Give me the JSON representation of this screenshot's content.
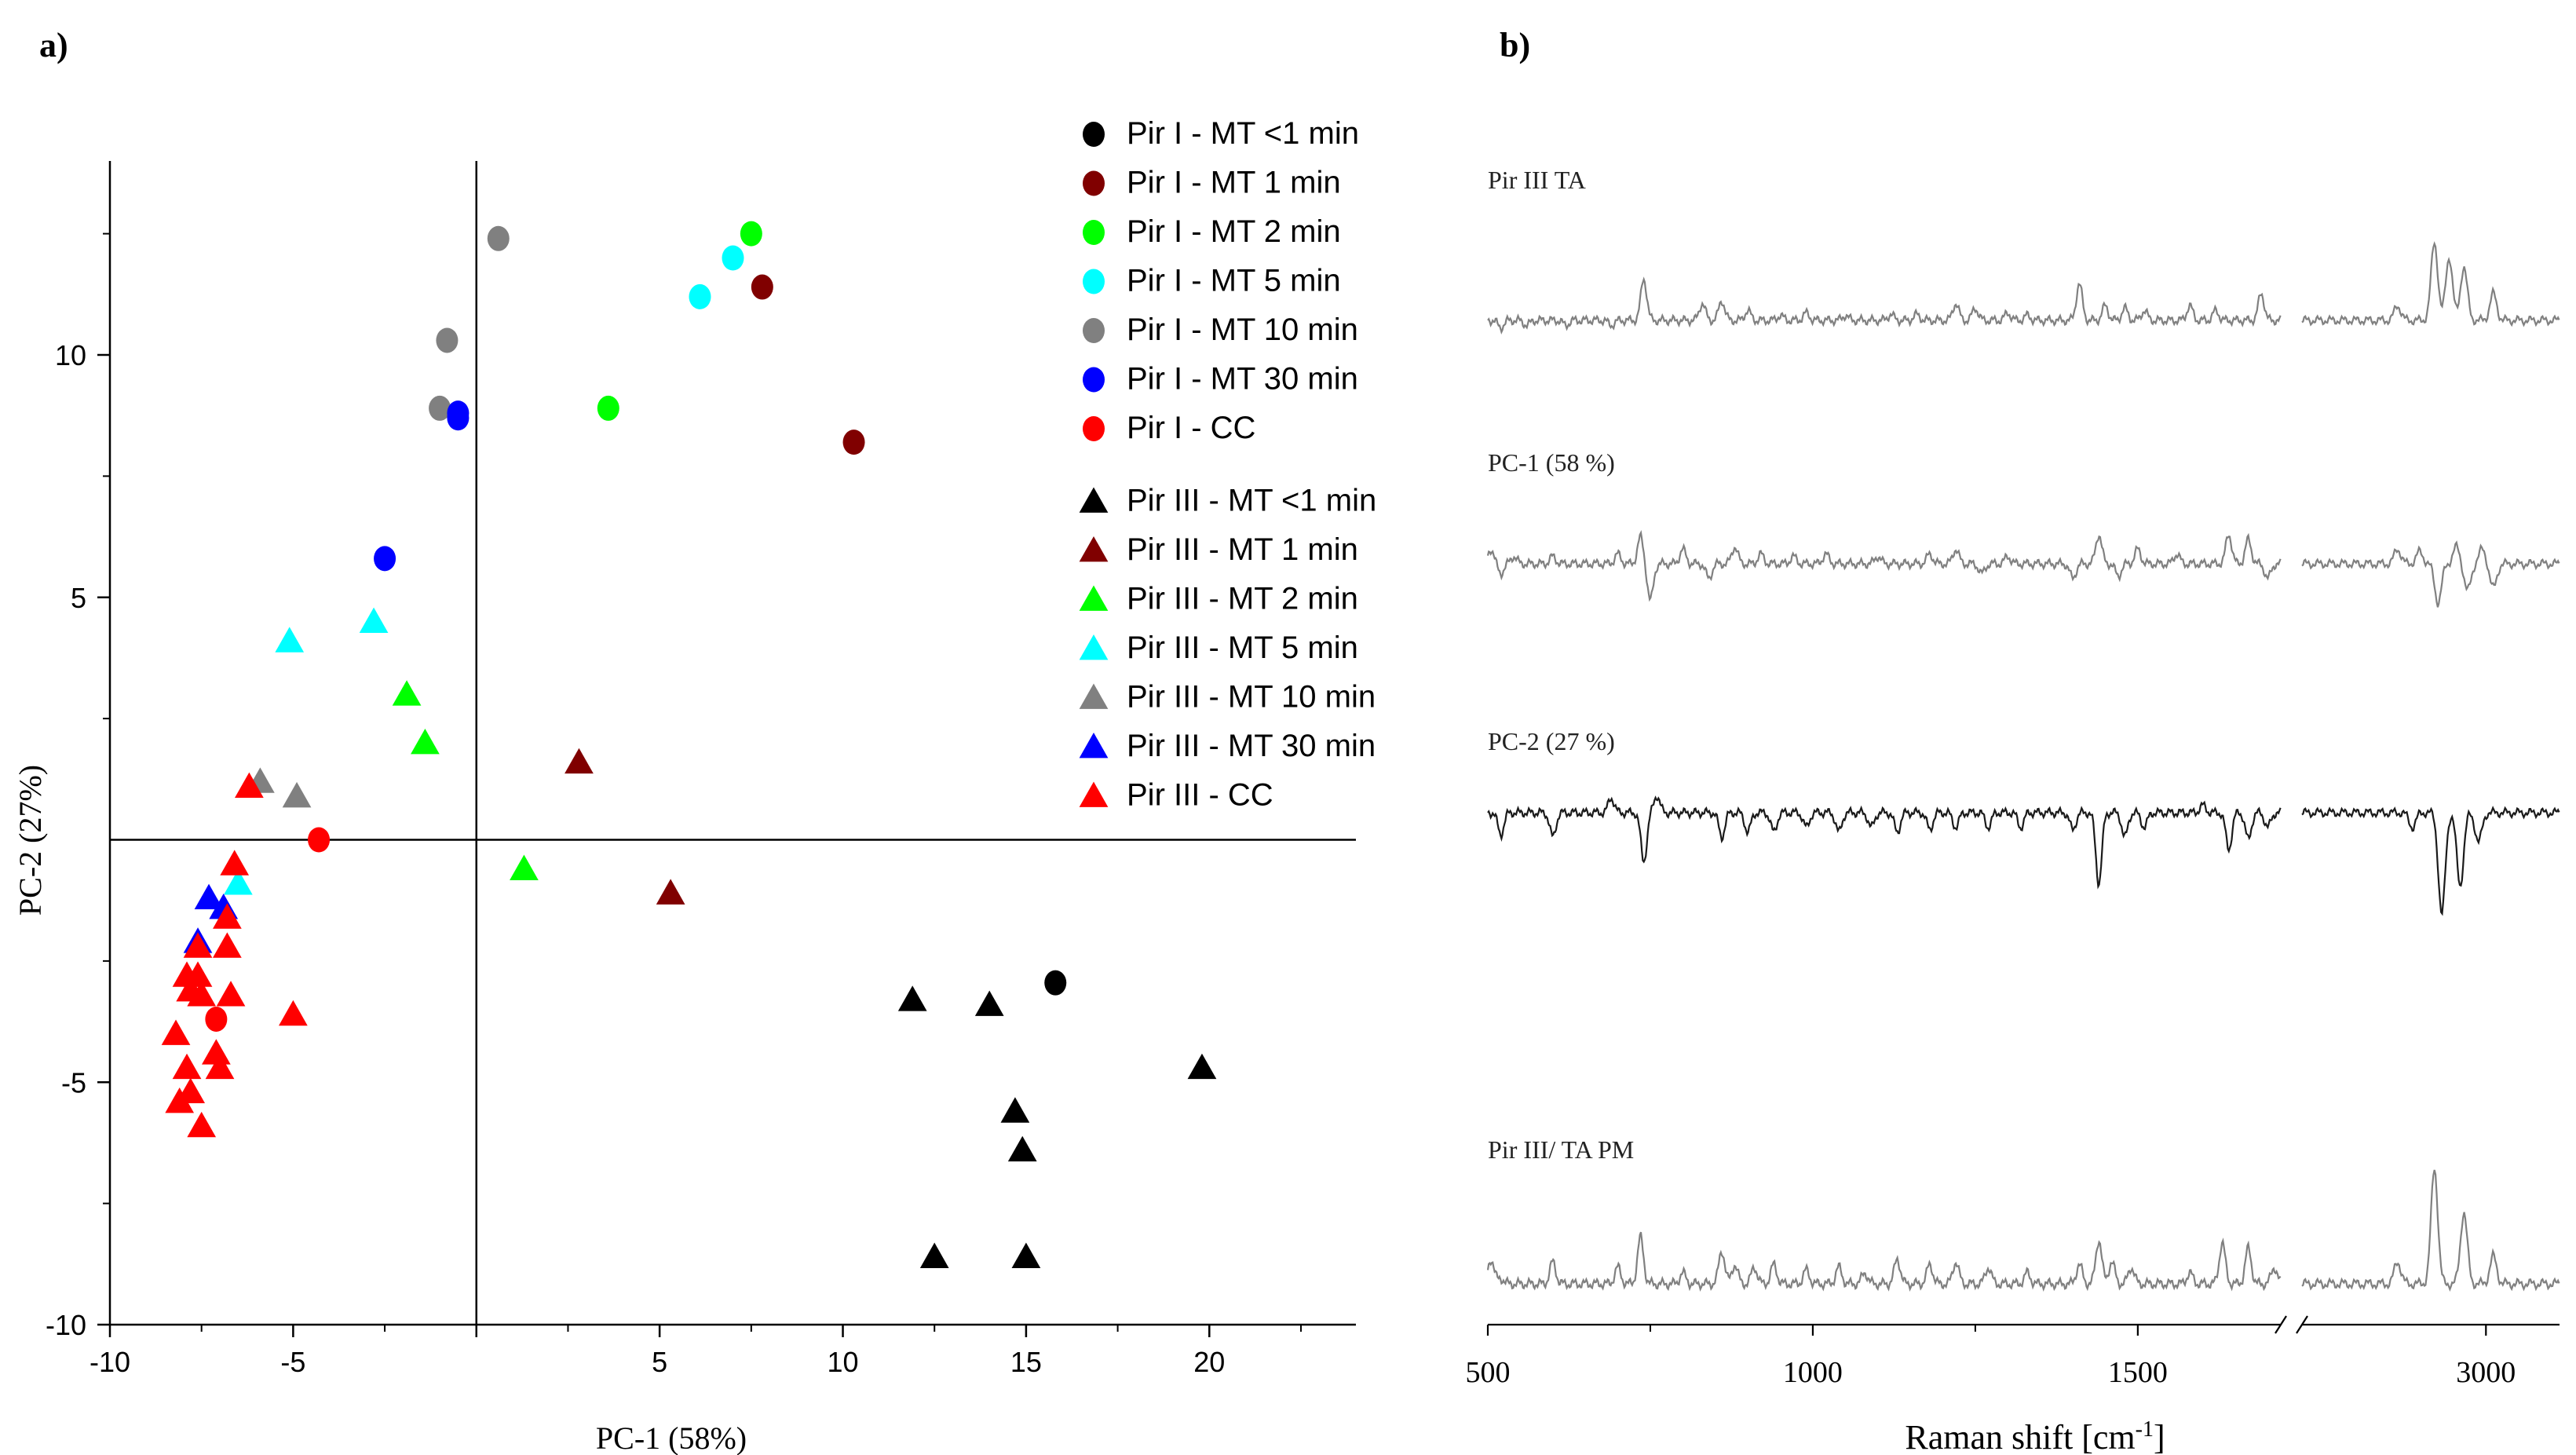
{
  "chart_data": [
    {
      "type": "scatter",
      "panel_label": "a)",
      "xlabel": "PC-1 (58%)",
      "ylabel": "PC-2 (27%)",
      "xlim": [
        -10,
        24
      ],
      "ylim": [
        -10,
        14
      ],
      "xticks": [
        -10,
        -5,
        0,
        5,
        10,
        15,
        20
      ],
      "xtick_labels": [
        "-10",
        "-5",
        "",
        "5",
        "10",
        "15",
        "20"
      ],
      "yticks": [
        -10,
        -5,
        5,
        10
      ],
      "ytick_labels": [
        "-10",
        "-5",
        "5",
        "10"
      ],
      "grid": false,
      "legend_position": "top-right",
      "series": [
        {
          "name": "Pir I - MT <1 min",
          "marker": "circle",
          "color": "#000000",
          "points": [
            [
              15.8,
              -2.95
            ]
          ]
        },
        {
          "name": "Pir I - MT 1   min",
          "marker": "circle",
          "color": "#800000",
          "points": [
            [
              7.8,
              11.4
            ],
            [
              10.3,
              8.2
            ]
          ]
        },
        {
          "name": "Pir I - MT 2   min",
          "marker": "circle",
          "color": "#00ff00",
          "points": [
            [
              7.5,
              12.5
            ],
            [
              3.6,
              8.9
            ]
          ]
        },
        {
          "name": "Pir I - MT 5   min",
          "marker": "circle",
          "color": "#00ffff",
          "points": [
            [
              7.0,
              12.0
            ],
            [
              6.1,
              11.2
            ]
          ]
        },
        {
          "name": "Pir I - MT 10 min",
          "marker": "circle",
          "color": "#808080",
          "points": [
            [
              0.6,
              12.4
            ],
            [
              -0.8,
              10.3
            ],
            [
              -1.0,
              8.9
            ]
          ]
        },
        {
          "name": "Pir I - MT 30 min",
          "marker": "circle",
          "color": "#0000ff",
          "points": [
            [
              -0.5,
              8.8
            ],
            [
              -0.5,
              8.7
            ],
            [
              -2.5,
              5.8
            ]
          ]
        },
        {
          "name": "Pir I - CC",
          "marker": "circle",
          "color": "#ff0000",
          "points": [
            [
              -4.3,
              0.0
            ],
            [
              -7.1,
              -3.7
            ]
          ]
        },
        {
          "name": "Pir III - MT <1 min",
          "marker": "triangle",
          "color": "#000000",
          "points": [
            [
              11.9,
              -3.3
            ],
            [
              14.0,
              -3.4
            ],
            [
              19.8,
              -4.7
            ],
            [
              14.7,
              -5.6
            ],
            [
              14.9,
              -6.4
            ],
            [
              12.5,
              -8.6
            ],
            [
              15.0,
              -8.6
            ]
          ]
        },
        {
          "name": "Pir III - MT 1   min",
          "marker": "triangle",
          "color": "#800000",
          "points": [
            [
              2.8,
              1.6
            ],
            [
              5.3,
              -1.1
            ]
          ]
        },
        {
          "name": "Pir III - MT 2   min",
          "marker": "triangle",
          "color": "#00ff00",
          "points": [
            [
              -1.9,
              3.0
            ],
            [
              -1.4,
              2.0
            ],
            [
              1.3,
              -0.6
            ]
          ]
        },
        {
          "name": "Pir III - MT 5   min",
          "marker": "triangle",
          "color": "#00ffff",
          "points": [
            [
              -5.1,
              4.1
            ],
            [
              -2.8,
              4.5
            ],
            [
              -6.5,
              -0.9
            ]
          ]
        },
        {
          "name": "Pir III - MT 10 min",
          "marker": "triangle",
          "color": "#808080",
          "points": [
            [
              -5.9,
              1.2
            ],
            [
              -4.9,
              0.9
            ]
          ]
        },
        {
          "name": "Pir III - MT 30 min",
          "marker": "triangle",
          "color": "#0000ff",
          "points": [
            [
              -7.3,
              -1.2
            ],
            [
              -6.9,
              -1.4
            ],
            [
              -7.6,
              -2.1
            ]
          ]
        },
        {
          "name": "Pir III - CC",
          "marker": "triangle",
          "color": "#ff0000",
          "points": [
            [
              -6.6,
              -0.5
            ],
            [
              -6.2,
              1.1
            ],
            [
              -6.8,
              -1.6
            ],
            [
              -6.8,
              -2.2
            ],
            [
              -7.6,
              -2.2
            ],
            [
              -7.9,
              -2.8
            ],
            [
              -7.6,
              -2.8
            ],
            [
              -7.8,
              -3.1
            ],
            [
              -7.5,
              -3.2
            ],
            [
              -6.7,
              -3.2
            ],
            [
              -5.0,
              -3.6
            ],
            [
              -7.1,
              -4.4
            ],
            [
              -8.2,
              -4.0
            ],
            [
              -7.0,
              -4.7
            ],
            [
              -7.9,
              -4.7
            ],
            [
              -7.8,
              -5.2
            ],
            [
              -8.1,
              -5.4
            ],
            [
              -7.5,
              -5.9
            ]
          ]
        }
      ]
    },
    {
      "type": "line",
      "panel_label": "b)",
      "xlabel": "Raman shift [cm",
      "xlabel_sup": "-1",
      "xlabel_end": "]",
      "xticks": [
        500,
        1000,
        1500,
        3000
      ],
      "xtick_labels": [
        "500",
        "1000",
        "1500",
        "3000"
      ],
      "axis_break": [
        1720,
        2750
      ],
      "series": [
        {
          "name": "Pir III TA",
          "color": "#808080",
          "peaks_low": [
            [
              520,
              -0.15
            ],
            [
              560,
              -0.1
            ],
            [
              620,
              -0.1
            ],
            [
              690,
              -0.1
            ],
            [
              740,
              0.85
            ],
            [
              830,
              0.35
            ],
            [
              860,
              0.4
            ],
            [
              900,
              0.2
            ],
            [
              950,
              0.1
            ],
            [
              990,
              0.15
            ],
            [
              1050,
              0.1
            ],
            [
              1120,
              0.12
            ],
            [
              1160,
              0.12
            ],
            [
              1220,
              0.35
            ],
            [
              1250,
              0.25
            ],
            [
              1300,
              0.15
            ],
            [
              1330,
              0.1
            ],
            [
              1410,
              0.75
            ],
            [
              1450,
              0.3
            ],
            [
              1480,
              0.25
            ],
            [
              1510,
              0.2
            ],
            [
              1580,
              0.3
            ],
            [
              1620,
              0.2
            ],
            [
              1690,
              0.55
            ]
          ],
          "peaks_high": [
            [
              2880,
              0.3
            ],
            [
              2930,
              1.6
            ],
            [
              2950,
              1.3
            ],
            [
              2970,
              1.1
            ],
            [
              3010,
              0.55
            ]
          ]
        },
        {
          "name": "PC-1 (58 %)",
          "color": "#808080",
          "peaks_low": [
            [
              505,
              0.3
            ],
            [
              520,
              -0.2
            ],
            [
              540,
              0.15
            ],
            [
              600,
              0.15
            ],
            [
              700,
              0.2
            ],
            [
              735,
              0.55
            ],
            [
              750,
              -0.75
            ],
            [
              800,
              0.3
            ],
            [
              840,
              -0.3
            ],
            [
              880,
              0.35
            ],
            [
              920,
              0.2
            ],
            [
              970,
              0.15
            ],
            [
              1020,
              0.2
            ],
            [
              1100,
              0.15
            ],
            [
              1180,
              0.2
            ],
            [
              1220,
              0.3
            ],
            [
              1260,
              -0.2
            ],
            [
              1300,
              0.15
            ],
            [
              1400,
              -0.3
            ],
            [
              1440,
              0.6
            ],
            [
              1470,
              -0.25
            ],
            [
              1500,
              0.3
            ],
            [
              1560,
              0.2
            ],
            [
              1640,
              0.6
            ],
            [
              1670,
              0.5
            ],
            [
              1700,
              -0.3
            ]
          ],
          "peaks_high": [
            [
              2880,
              0.3
            ],
            [
              2910,
              0.25
            ],
            [
              2935,
              -0.8
            ],
            [
              2960,
              0.35
            ],
            [
              2975,
              -0.55
            ],
            [
              2995,
              0.3
            ],
            [
              3010,
              -0.5
            ]
          ]
        },
        {
          "name": "PC-2 (27 %)",
          "color": "#1a1a1a",
          "peaks_low": [
            [
              520,
              -0.45
            ],
            [
              600,
              -0.5
            ],
            [
              690,
              0.3
            ],
            [
              740,
              -1.0
            ],
            [
              760,
              0.35
            ],
            [
              860,
              -0.5
            ],
            [
              900,
              -0.4
            ],
            [
              940,
              -0.4
            ],
            [
              990,
              -0.3
            ],
            [
              1040,
              -0.4
            ],
            [
              1090,
              -0.3
            ],
            [
              1130,
              -0.4
            ],
            [
              1180,
              -0.35
            ],
            [
              1220,
              -0.3
            ],
            [
              1270,
              -0.3
            ],
            [
              1320,
              -0.3
            ],
            [
              1400,
              -0.35
            ],
            [
              1440,
              -1.45
            ],
            [
              1480,
              -0.5
            ],
            [
              1510,
              -0.3
            ],
            [
              1600,
              0.15
            ],
            [
              1640,
              -0.75
            ],
            [
              1670,
              -0.55
            ],
            [
              1700,
              -0.3
            ]
          ],
          "peaks_high": [
            [
              2900,
              -0.3
            ],
            [
              2940,
              -2.1
            ],
            [
              2965,
              -1.5
            ],
            [
              2990,
              -0.6
            ]
          ]
        },
        {
          "name": "Pir III/ TA PM",
          "color": "#808080",
          "peaks_low": [
            [
              505,
              0.45
            ],
            [
              520,
              0.1
            ],
            [
              600,
              0.4
            ],
            [
              700,
              0.3
            ],
            [
              735,
              0.85
            ],
            [
              800,
              0.2
            ],
            [
              860,
              0.6
            ],
            [
              880,
              0.35
            ],
            [
              910,
              0.3
            ],
            [
              940,
              0.35
            ],
            [
              990,
              0.25
            ],
            [
              1040,
              0.3
            ],
            [
              1080,
              0.2
            ],
            [
              1130,
              0.45
            ],
            [
              1180,
              0.35
            ],
            [
              1220,
              0.4
            ],
            [
              1270,
              0.3
            ],
            [
              1330,
              0.2
            ],
            [
              1410,
              0.35
            ],
            [
              1440,
              0.8
            ],
            [
              1460,
              0.4
            ],
            [
              1490,
              0.3
            ],
            [
              1580,
              0.2
            ],
            [
              1630,
              0.75
            ],
            [
              1670,
              0.65
            ],
            [
              1710,
              0.3
            ]
          ],
          "peaks_high": [
            [
              2880,
              0.4
            ],
            [
              2930,
              2.1
            ],
            [
              2970,
              1.3
            ],
            [
              3010,
              0.5
            ]
          ]
        }
      ]
    }
  ]
}
